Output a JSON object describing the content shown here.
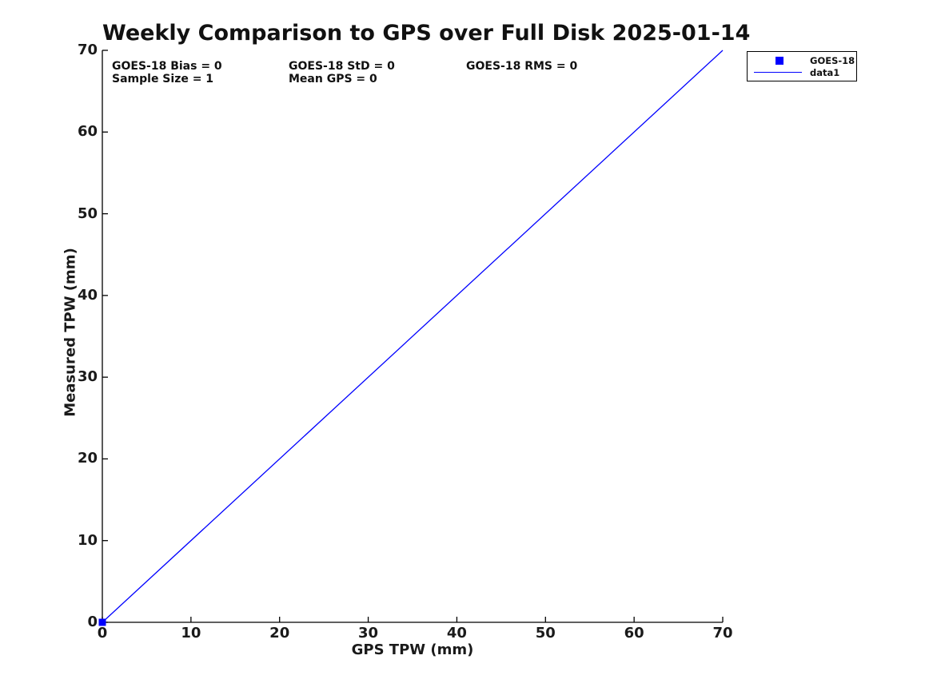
{
  "title": "Weekly Comparison to GPS over Full Disk 2025-01-14",
  "stats": {
    "bias": "GOES-18 Bias = 0",
    "std": "GOES-18 StD = 0",
    "rms": "GOES-18 RMS = 0",
    "sample_size": "Sample Size = 1",
    "mean_gps": "Mean GPS = 0"
  },
  "legend": {
    "entries": [
      {
        "label": "GOES-18",
        "marker": "square",
        "color": "#0000ff"
      },
      {
        "label": "data1",
        "marker": "line",
        "color": "#0000ff"
      }
    ],
    "position": "upper-right-outside"
  },
  "chart_data": {
    "type": "scatter",
    "title": "Weekly Comparison to GPS over Full Disk 2025-01-14",
    "xlabel": "GPS TPW (mm)",
    "ylabel": "Measured TPW (mm)",
    "xlim": [
      0,
      70
    ],
    "ylim": [
      0,
      70
    ],
    "xticks": [
      0,
      10,
      20,
      30,
      40,
      50,
      60,
      70
    ],
    "yticks": [
      0,
      10,
      20,
      30,
      40,
      50,
      60,
      70
    ],
    "grid": false,
    "axis_color": "#000000",
    "annotations": [
      "GOES-18 Bias = 0",
      "GOES-18 StD = 0",
      "GOES-18 RMS = 0",
      "Sample Size = 1",
      "Mean GPS = 0"
    ],
    "series": [
      {
        "name": "GOES-18",
        "type": "scatter",
        "marker": "square",
        "color": "#0000ff",
        "points": [
          [
            0,
            0
          ]
        ]
      },
      {
        "name": "data1",
        "type": "line",
        "color": "#0000ff",
        "points": [
          [
            0,
            0
          ],
          [
            70,
            70
          ]
        ]
      }
    ]
  }
}
